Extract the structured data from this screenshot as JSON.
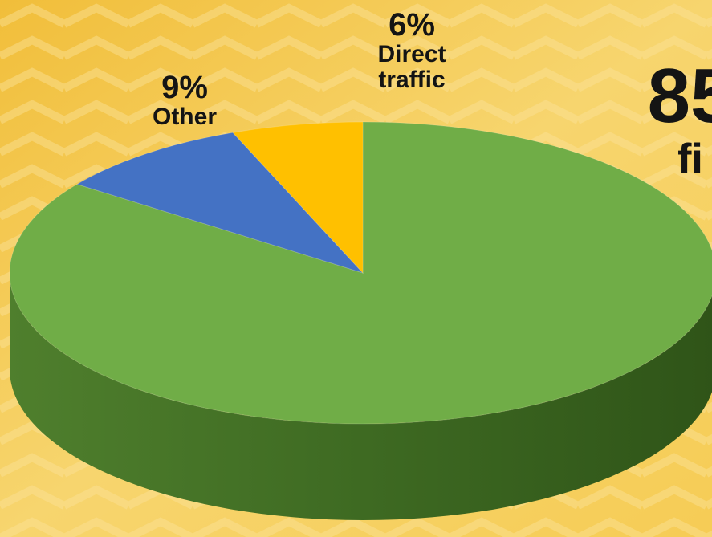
{
  "chart_data": {
    "type": "pie",
    "categories": [
      "fi",
      "Other",
      "Direct traffic"
    ],
    "values": [
      85,
      9,
      6
    ],
    "value_labels": [
      "85",
      "9%",
      "6%"
    ],
    "colors": [
      "#70ad47",
      "#4472c4",
      "#ffc000"
    ],
    "start_angle": 0,
    "direction": "clockwise",
    "three_d": true
  }
}
